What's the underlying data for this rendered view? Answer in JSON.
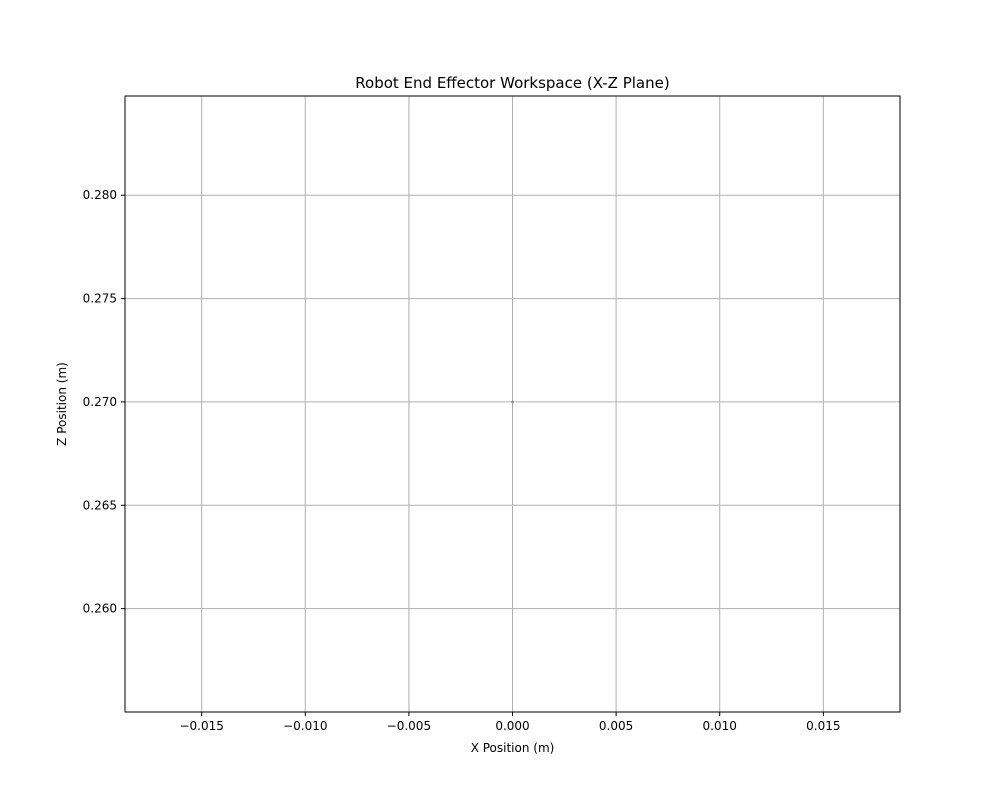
{
  "chart_data": {
    "type": "scatter",
    "title": "Robot End Effector Workspace (X-Z Plane)",
    "xlabel": "X Position (m)",
    "ylabel": "Z Position (m)",
    "xlim": [
      -0.0187,
      0.0187
    ],
    "ylim": [
      0.255,
      0.2848
    ],
    "xticks": [
      -0.015,
      -0.01,
      -0.005,
      0.0,
      0.005,
      0.01,
      0.015
    ],
    "xtick_labels": [
      "−0.015",
      "−0.010",
      "−0.005",
      "0.000",
      "0.005",
      "0.010",
      "0.015"
    ],
    "yticks": [
      0.26,
      0.265,
      0.27,
      0.275,
      0.28
    ],
    "ytick_labels": [
      "0.260",
      "0.265",
      "0.270",
      "0.275",
      "0.280"
    ],
    "grid": true,
    "legend": "none",
    "series": [
      {
        "color": "#1f77b4",
        "points": [
          {
            "x": 0.0,
            "y": 0.27
          }
        ]
      }
    ]
  }
}
